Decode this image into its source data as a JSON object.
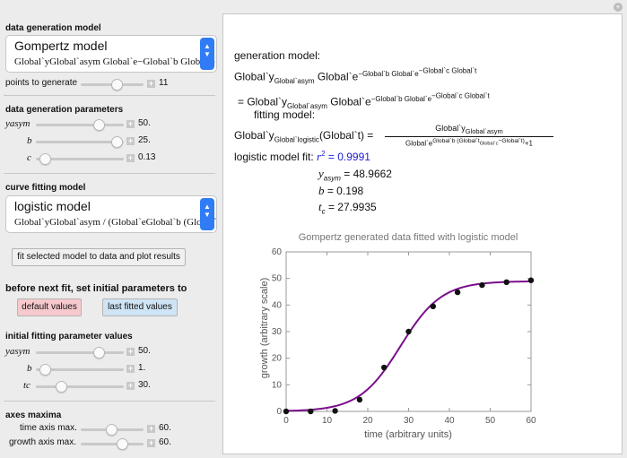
{
  "data_generation": {
    "title": "data generation model",
    "model_selected": "Gompertz model",
    "model_expression": "Global`yGlobal`asym Global`e−Global`b Global`e`",
    "points_label": "points to generate",
    "points_value": "11"
  },
  "gen_params": {
    "title": "data generation parameters",
    "yasym_label": "yasym",
    "yasym_value": "50.",
    "b_label": "b",
    "b_value": "25.",
    "c_label": "c",
    "c_value": "0.13"
  },
  "curve_fitting": {
    "title": "curve fitting model",
    "model_selected": "logistic model",
    "model_expression": "Global`yGlobal`asym / (Global`eGlobal`b (Global`",
    "fit_button": "fit selected model to data and plot results"
  },
  "initial_params": {
    "heading": "before next fit, set initial parameters to",
    "default_button": "default values",
    "last_fitted_button": "last fitted values",
    "title": "initial fitting parameter values",
    "yasym_label": "yasym",
    "yasym_value": "50.",
    "b_label": "b",
    "b_value": "1.",
    "tc_label": "tc",
    "tc_value": "30."
  },
  "axes_maxima": {
    "title": "axes maxima",
    "time_label": "time axis max.",
    "time_value": "60.",
    "growth_label": "growth axis max.",
    "growth_value": "60."
  },
  "output": {
    "gen_model_label": "generation model:",
    "equals": "=",
    "fitting_model_label": "fitting model:",
    "fit_label": "logistic model fit:",
    "r2_value": "= 0.9991",
    "yasym_fit": "= 48.9662",
    "b_fit": "= 0.198",
    "tc_fit": "= 27.9935"
  },
  "chart_data": {
    "type": "scatter",
    "title": "Gompertz generated data fitted with logistic model",
    "xlabel": "time (arbitrary units)",
    "ylabel": "growth (arbitrary scale)",
    "xlim": [
      0,
      60
    ],
    "ylim": [
      0,
      60
    ],
    "x_ticks": [
      0,
      10,
      20,
      30,
      40,
      50,
      60
    ],
    "y_ticks": [
      0,
      10,
      20,
      30,
      40,
      50,
      60
    ],
    "points": {
      "x": [
        0,
        6,
        12,
        18,
        24,
        30,
        36,
        42,
        48,
        54,
        60
      ],
      "y": [
        0.0,
        0.0,
        0.2,
        4.4,
        16.5,
        30.0,
        39.5,
        44.8,
        47.5,
        48.6,
        49.3
      ]
    },
    "fit": {
      "yasym": 48.9662,
      "b": 0.198,
      "tc": 27.9935
    },
    "point_color": "#111111",
    "curve_color": "#7a0f8c",
    "grid": false
  }
}
